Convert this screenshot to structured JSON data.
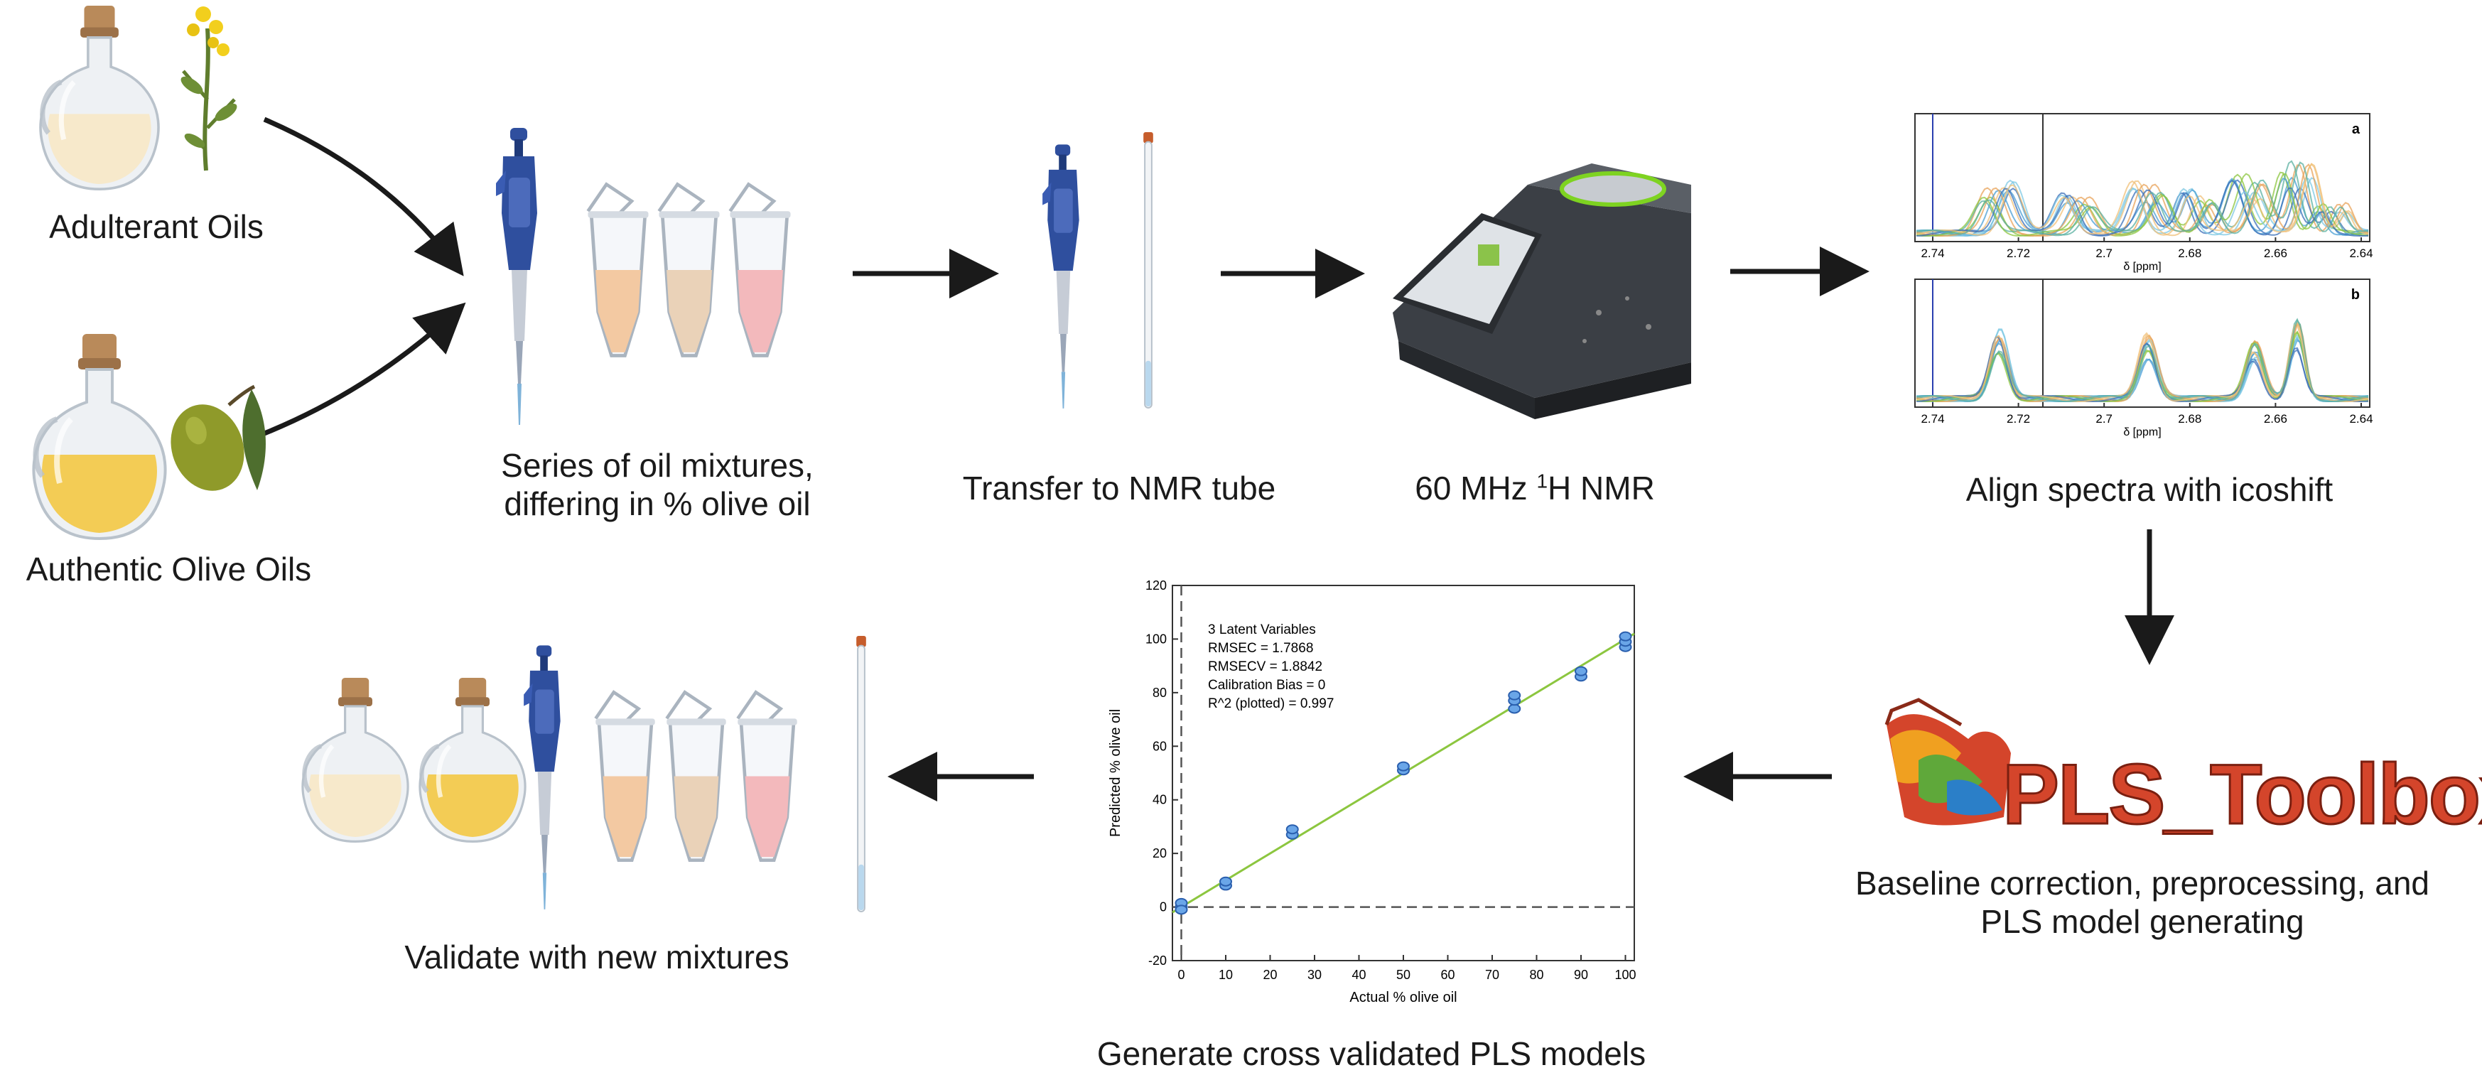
{
  "steps": {
    "adulterant_oils": "Adulterant Oils",
    "authentic_olive_oils": "Authentic Olive Oils",
    "mixtures_line1": "Series of oil mixtures,",
    "mixtures_line2": "differing in % olive oil",
    "transfer": "Transfer to NMR tube",
    "nmr_prefix": "60 MHz ",
    "nmr_sup": "1",
    "nmr_suffix": "H NMR",
    "align": "Align spectra with icoshift",
    "baseline_line1": "Baseline correction, preprocessing, and",
    "baseline_line2": "PLS model generating",
    "cross_validated": "Generate cross validated PLS models",
    "validate": "Validate with new mixtures"
  },
  "pls_logo_text": "PLS_Toolbox",
  "spectra": {
    "panel_a_label": "a",
    "panel_b_label": "b",
    "xlabel": "δ [ppm]",
    "ticks": [
      "2.74",
      "2.72",
      "2.7",
      "2.68",
      "2.66",
      "2.64"
    ]
  },
  "colors": {
    "arrow": "#1a1a1a",
    "pipette_blue": "#2f4f9e",
    "pls_red": "#c0392b",
    "pls_orange": "#e8722a",
    "fit_line": "#8cc63f",
    "points": "#3b7dd8"
  },
  "chart_data": {
    "type": "scatter",
    "xlabel": "Actual % olive oil",
    "ylabel": "Predicted % olive oil",
    "xlim": [
      -2,
      102
    ],
    "ylim": [
      -20,
      120
    ],
    "xticks": [
      0,
      10,
      20,
      30,
      40,
      50,
      60,
      70,
      80,
      90,
      100
    ],
    "yticks": [
      -20,
      0,
      20,
      40,
      60,
      80,
      100,
      120
    ],
    "annotations": [
      "3 Latent Variables",
      "RMSEC = 1.7868",
      "RMSECV = 1.8842",
      "Calibration Bias = 0",
      "R^2 (plotted) = 0.997"
    ],
    "points": [
      {
        "x": 0,
        "y": 0
      },
      {
        "x": 0,
        "y": 1.5
      },
      {
        "x": 0,
        "y": -1
      },
      {
        "x": 10,
        "y": 8
      },
      {
        "x": 10,
        "y": 9.5
      },
      {
        "x": 25,
        "y": 27
      },
      {
        "x": 25,
        "y": 29
      },
      {
        "x": 50,
        "y": 51
      },
      {
        "x": 50,
        "y": 52.5
      },
      {
        "x": 75,
        "y": 74
      },
      {
        "x": 75,
        "y": 77
      },
      {
        "x": 75,
        "y": 79
      },
      {
        "x": 90,
        "y": 86
      },
      {
        "x": 90,
        "y": 88
      },
      {
        "x": 100,
        "y": 97
      },
      {
        "x": 100,
        "y": 99
      },
      {
        "x": 100,
        "y": 101
      }
    ],
    "fit_line": {
      "x": [
        -2,
        102
      ],
      "y": [
        -2,
        102
      ]
    },
    "grid": false
  }
}
